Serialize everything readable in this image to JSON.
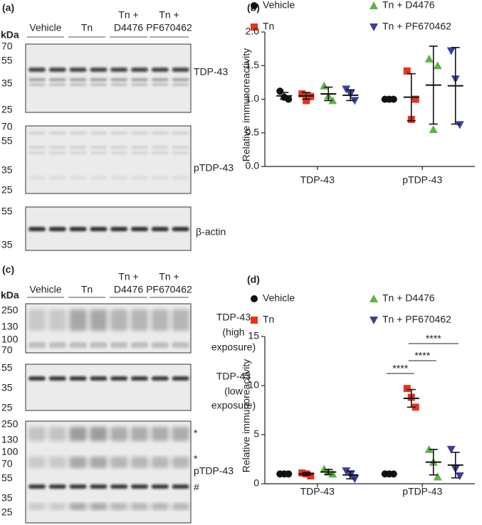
{
  "blots": [
    {
      "panel": "(a)",
      "unit": "kDa",
      "lanes": [
        [
          "Vehicle"
        ],
        [
          "Tn"
        ],
        [
          "Tn +",
          "D4476"
        ],
        [
          "Tn +",
          "PF670462"
        ]
      ],
      "membranes": [
        {
          "markers": [
            70,
            55,
            35,
            25
          ],
          "labels": [
            "TDP-43"
          ]
        },
        {
          "markers": [
            70,
            55,
            35,
            25
          ],
          "labels": [
            "pTDP-43"
          ]
        },
        {
          "markers": [
            55,
            35
          ],
          "labels": [
            "β-actin"
          ]
        }
      ]
    },
    {
      "panel": "(c)",
      "unit": "kDa",
      "lanes": [
        [
          "Vehicle"
        ],
        [
          "Tn"
        ],
        [
          "Tn +",
          "D4476"
        ],
        [
          "Tn +",
          "PF670462"
        ]
      ],
      "membranes": [
        {
          "markers": [
            250,
            130,
            100,
            70
          ],
          "labels": [
            "TDP-43",
            "(high",
            "exposure)"
          ]
        },
        {
          "markers": [
            55,
            35,
            25
          ],
          "labels": [
            "TDP-43",
            "(low",
            "exposure)"
          ]
        },
        {
          "markers": [
            250,
            130,
            100,
            70,
            55,
            35,
            25
          ],
          "labels": [
            "*",
            "*",
            "pTDP-43",
            "#"
          ]
        }
      ]
    }
  ],
  "chart_data": [
    {
      "type": "scatter",
      "panel": "(b)",
      "ylabel": "Relative immunoreactivity",
      "categories": [
        "TDP-43",
        "pTDP-43"
      ],
      "ylim": [
        0,
        2
      ],
      "yticks": [
        {
          "value": 0,
          "label": "0.0"
        },
        {
          "value": 0.5,
          "label": "0.5"
        },
        {
          "value": 1,
          "label": "1.0"
        },
        {
          "value": 1.5,
          "label": "1.5"
        },
        {
          "value": 2,
          "label": "2.0"
        }
      ],
      "series": [
        {
          "name": "Vehicle",
          "color": "#111111",
          "marker": "circle",
          "values": [
            [
              1.12,
              1.0,
              1.03
            ],
            [
              1,
              1,
              1
            ]
          ],
          "mean": [
            1.05,
            1
          ],
          "sd": [
            0.05,
            0
          ]
        },
        {
          "name": "Tn",
          "color": "#e8321e",
          "marker": "square",
          "values": [
            [
              1.08,
              1.04,
              0.98
            ],
            [
              1.42,
              1.0,
              0.7
            ]
          ],
          "mean": [
            1.05,
            1.03
          ],
          "sd": [
            0.05,
            0.35
          ]
        },
        {
          "name": "Tn + D4476",
          "color": "#5bb543",
          "marker": "triangle-up",
          "values": [
            [
              1.2,
              0.98,
              1.05
            ],
            [
              1.6,
              1.5,
              0.55
            ]
          ],
          "mean": [
            1.08,
            1.21
          ],
          "sd": [
            0.1,
            0.58
          ]
        },
        {
          "name": "Tn + PF670462",
          "color": "#3b3fa0",
          "marker": "triangle-down",
          "values": [
            [
              1.15,
              0.98,
              1.08
            ],
            [
              1.72,
              0.62,
              1.3
            ]
          ],
          "mean": [
            1.06,
            1.2
          ],
          "sd": [
            0.08,
            0.57
          ]
        }
      ],
      "annotations": []
    },
    {
      "type": "scatter",
      "panel": "(d)",
      "ylabel": "Relative immunoreactivity",
      "categories": [
        "TDP-43",
        "pTDP-43"
      ],
      "ylim": [
        0,
        15
      ],
      "yticks": [
        0,
        5,
        10,
        15
      ],
      "series": [
        {
          "name": "Vehicle",
          "color": "#111111",
          "marker": "circle",
          "values": [
            [
              1,
              1,
              1
            ],
            [
              1,
              1,
              1
            ]
          ],
          "mean": [
            1,
            1
          ],
          "sd": [
            0,
            0
          ]
        },
        {
          "name": "Tn",
          "color": "#e8321e",
          "marker": "square",
          "values": [
            [
              1.1,
              0.8,
              1.0
            ],
            [
              9.7,
              7.8,
              8.8
            ]
          ],
          "mean": [
            1.0,
            8.7
          ],
          "sd": [
            0.15,
            0.9
          ]
        },
        {
          "name": "Tn + D4476",
          "color": "#5bb543",
          "marker": "triangle-up",
          "values": [
            [
              1.5,
              1.0,
              1.2
            ],
            [
              3.5,
              0.7,
              2.2
            ]
          ],
          "mean": [
            1.2,
            2.2
          ],
          "sd": [
            0.25,
            1.3
          ]
        },
        {
          "name": "Tn + PF670462",
          "color": "#3b3fa0",
          "marker": "triangle-down",
          "values": [
            [
              1.3,
              0.5,
              0.9
            ],
            [
              3.5,
              0.8,
              1.5
            ]
          ],
          "mean": [
            0.9,
            1.9
          ],
          "sd": [
            0.4,
            1.3
          ]
        }
      ],
      "annotations": [
        {
          "text": "****",
          "category": 1,
          "from": 0,
          "to": 1
        },
        {
          "text": "****",
          "category": 1,
          "from": 1,
          "to": 2
        },
        {
          "text": "****",
          "category": 1,
          "from": 1,
          "to": 3
        }
      ]
    }
  ]
}
